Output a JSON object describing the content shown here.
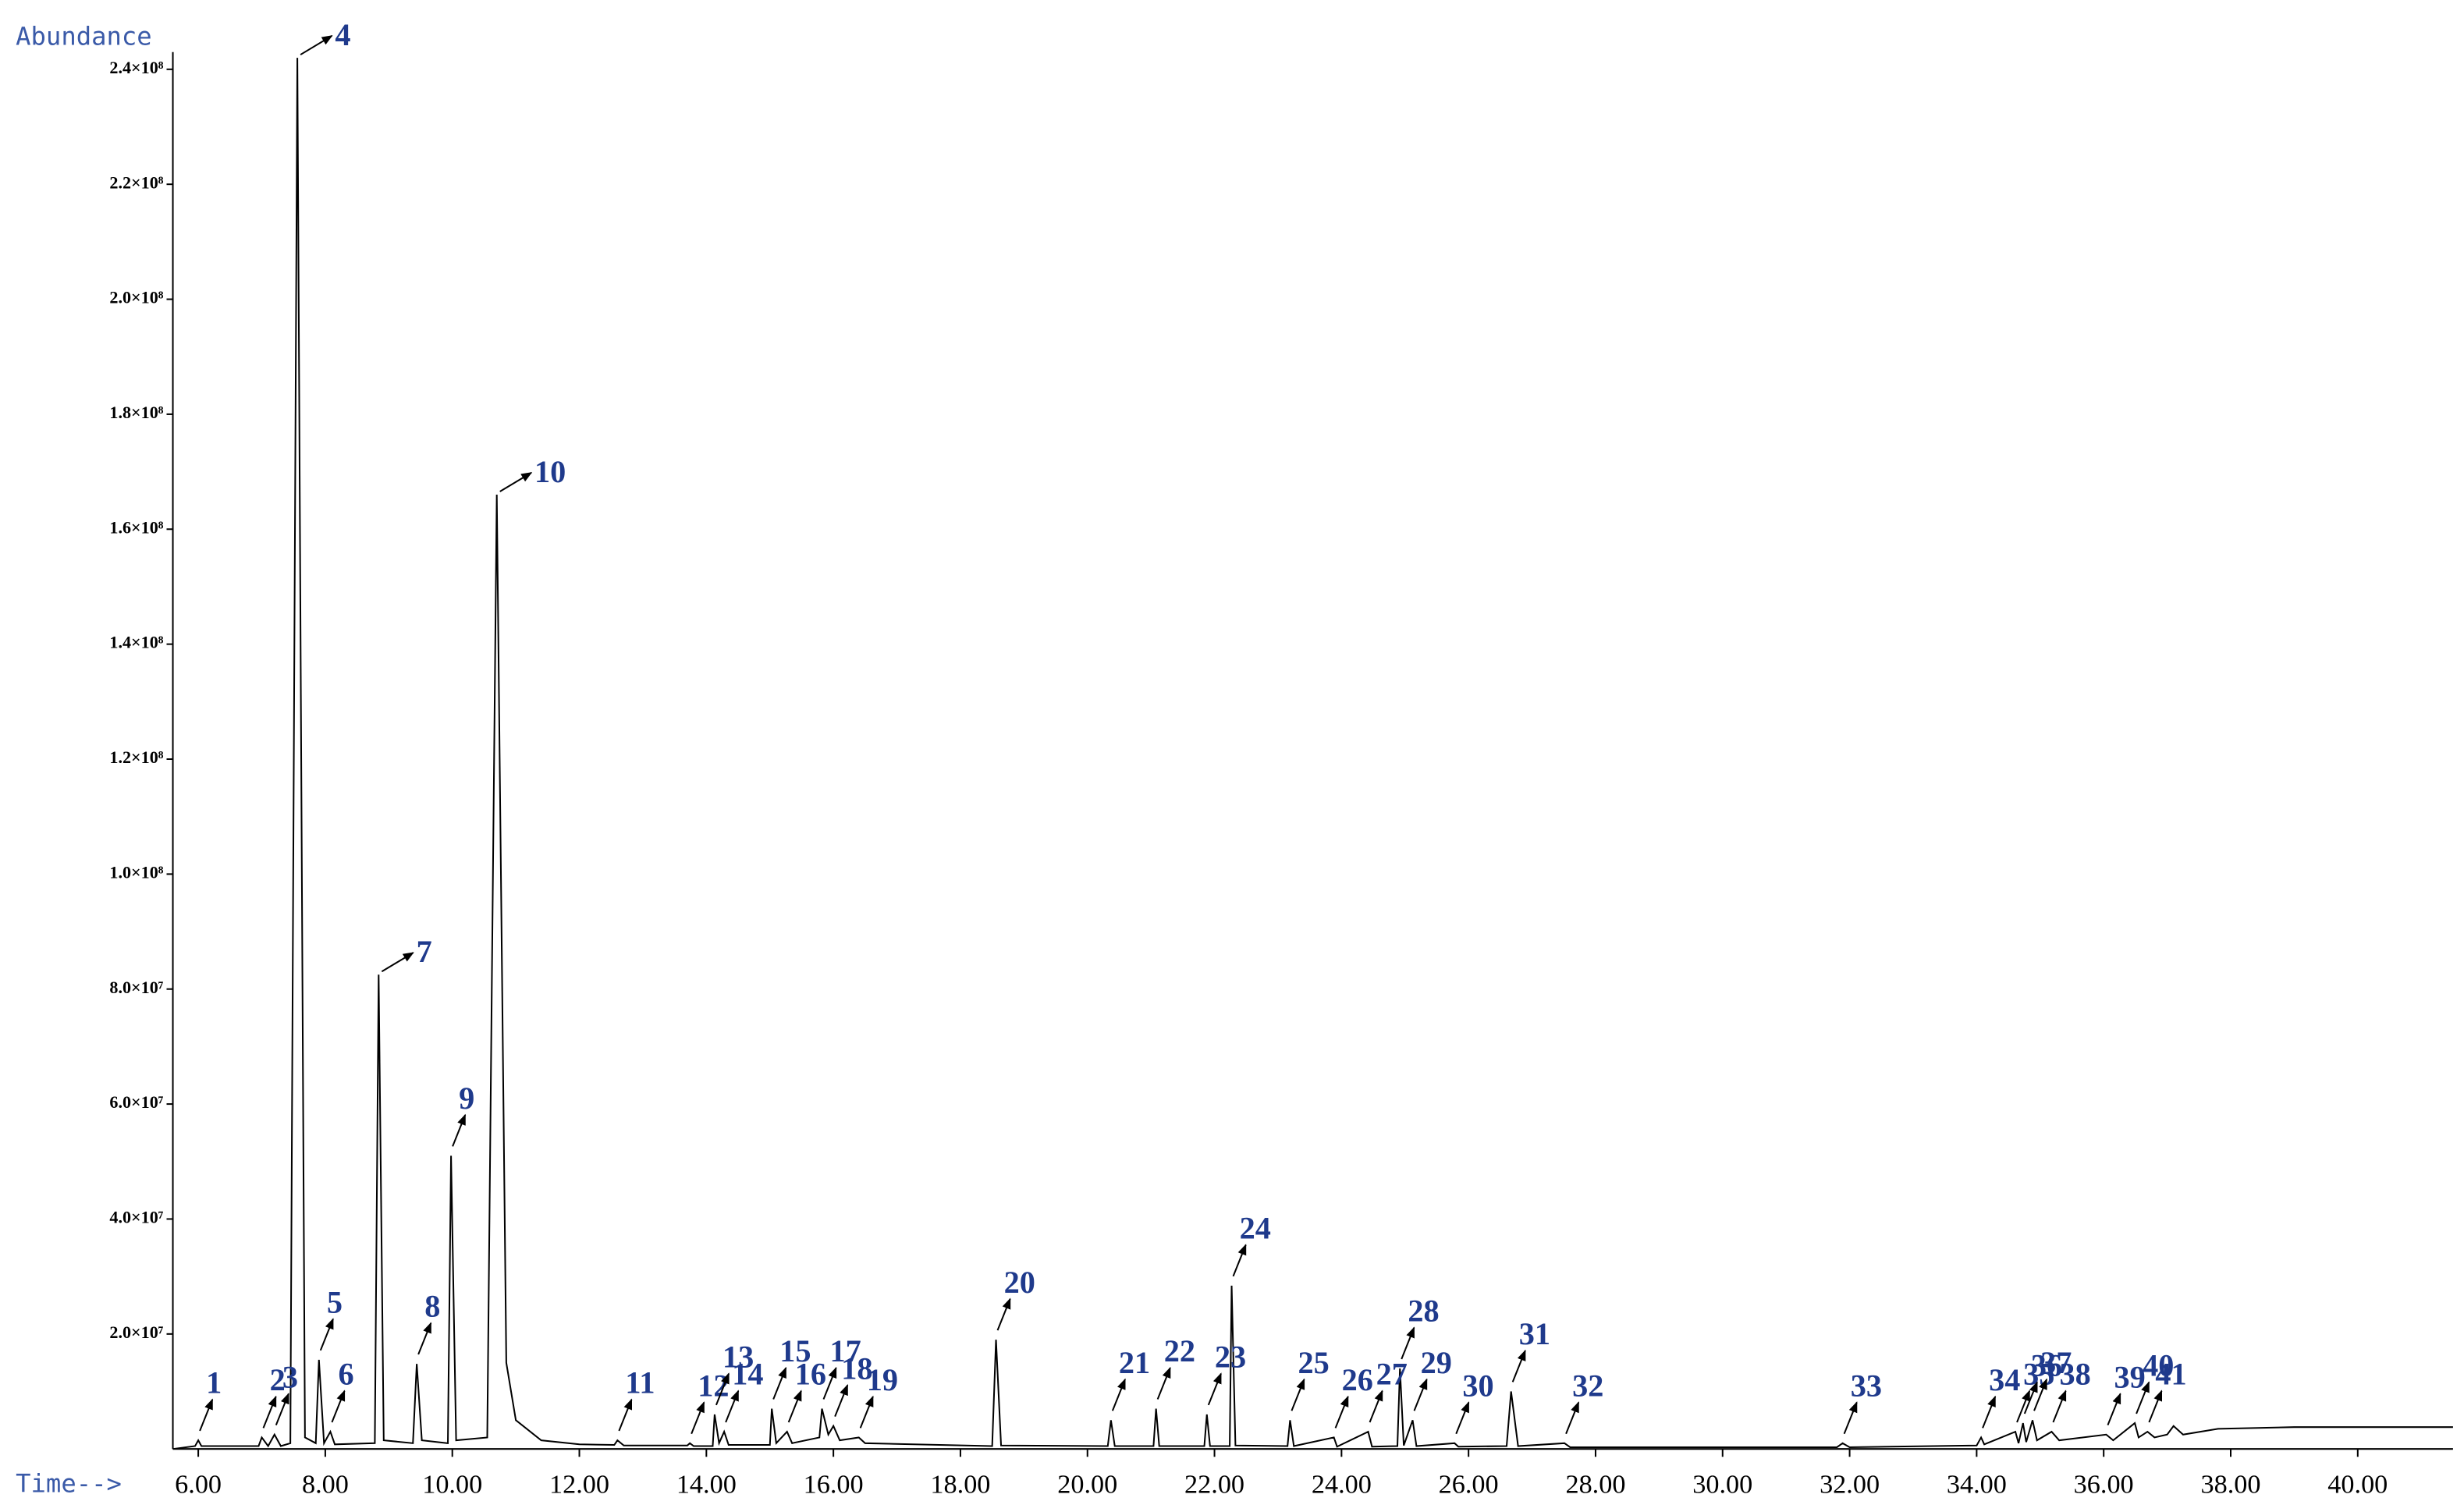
{
  "chart_data": {
    "type": "line",
    "y_label": "Abundance",
    "x_label": "Time-->",
    "color": "#000000",
    "xlim": [
      5.6,
      41.5
    ],
    "ylim": [
      0,
      243000000
    ],
    "xticks": [
      {
        "value": 6,
        "label": "6.00"
      },
      {
        "value": 8,
        "label": "8.00"
      },
      {
        "value": 10,
        "label": "10.00"
      },
      {
        "value": 12,
        "label": "12.00"
      },
      {
        "value": 14,
        "label": "14.00"
      },
      {
        "value": 16,
        "label": "16.00"
      },
      {
        "value": 18,
        "label": "18.00"
      },
      {
        "value": 20,
        "label": "20.00"
      },
      {
        "value": 22,
        "label": "22.00"
      },
      {
        "value": 24,
        "label": "24.00"
      },
      {
        "value": 26,
        "label": "26.00"
      },
      {
        "value": 28,
        "label": "28.00"
      },
      {
        "value": 30,
        "label": "30.00"
      },
      {
        "value": 32,
        "label": "32.00"
      },
      {
        "value": 34,
        "label": "34.00"
      },
      {
        "value": 36,
        "label": "36.00"
      },
      {
        "value": 38,
        "label": "38.00"
      },
      {
        "value": 40,
        "label": "40.00"
      }
    ],
    "yticks": [
      {
        "value": 20000000,
        "label": "2.0×10⁷"
      },
      {
        "value": 40000000,
        "label": "4.0×10⁷"
      },
      {
        "value": 60000000,
        "label": "6.0×10⁷"
      },
      {
        "value": 80000000,
        "label": "8.0×10⁷"
      },
      {
        "value": 100000000,
        "label": "1.0×10⁸"
      },
      {
        "value": 120000000,
        "label": "1.2×10⁸"
      },
      {
        "value": 140000000,
        "label": "1.4×10⁸"
      },
      {
        "value": 160000000,
        "label": "1.6×10⁸"
      },
      {
        "value": 180000000,
        "label": "1.8×10⁸"
      },
      {
        "value": 200000000,
        "label": "2.0×10⁸"
      },
      {
        "value": 220000000,
        "label": "2.2×10⁸"
      },
      {
        "value": 240000000,
        "label": "2.4×10⁸"
      }
    ],
    "x": [
      5.6,
      5.95,
      6.0,
      6.05,
      6.95,
      7.0,
      7.1,
      7.2,
      7.3,
      7.45,
      7.56,
      7.68,
      7.85,
      7.9,
      7.98,
      8.08,
      8.15,
      8.78,
      8.84,
      8.92,
      9.38,
      9.44,
      9.52,
      9.93,
      9.98,
      10.06,
      10.55,
      10.7,
      10.85,
      11.0,
      11.4,
      12.0,
      12.55,
      12.6,
      12.7,
      13.7,
      13.74,
      13.8,
      14.1,
      14.13,
      14.2,
      14.28,
      14.35,
      15.0,
      15.03,
      15.1,
      15.27,
      15.35,
      15.78,
      15.82,
      15.92,
      16.0,
      16.1,
      16.4,
      16.5,
      18.5,
      18.56,
      18.64,
      20.32,
      20.37,
      20.43,
      21.04,
      21.08,
      21.13,
      21.84,
      21.88,
      21.93,
      22.24,
      22.27,
      22.33,
      23.15,
      23.19,
      23.25,
      23.88,
      23.93,
      24.42,
      24.48,
      24.88,
      24.92,
      24.98,
      25.12,
      25.18,
      25.78,
      25.84,
      26.6,
      26.67,
      26.78,
      27.51,
      27.6,
      31.8,
      31.89,
      32.0,
      34.0,
      34.07,
      34.12,
      34.61,
      34.66,
      34.73,
      34.78,
      34.88,
      34.95,
      35.18,
      35.3,
      36.04,
      36.15,
      36.49,
      36.55,
      36.69,
      36.8,
      37.0,
      37.1,
      37.25,
      37.8,
      39.0,
      41.5
    ],
    "values": [
      0,
      500000,
      1500000,
      500000,
      500000,
      2000000,
      500000,
      2500000,
      500000,
      1000000,
      242000000,
      2000000,
      1000000,
      15500000,
      1000000,
      3000000,
      800000,
      1000000,
      82500000,
      1500000,
      1000000,
      14800000,
      1500000,
      1000000,
      51000000,
      1500000,
      2000000,
      166000000,
      15000000,
      5000000,
      1500000,
      800000,
      700000,
      1500000,
      600000,
      600000,
      1000000,
      500000,
      500000,
      6000000,
      1000000,
      3000000,
      700000,
      700000,
      7000000,
      1000000,
      3000000,
      1000000,
      2000000,
      7000000,
      2500000,
      4000000,
      1500000,
      2000000,
      1000000,
      500000,
      19000000,
      600000,
      500000,
      5000000,
      500000,
      500000,
      7000000,
      500000,
      500000,
      6000000,
      500000,
      500000,
      28400000,
      600000,
      500000,
      5000000,
      500000,
      2000000,
      400000,
      3000000,
      400000,
      500000,
      14000000,
      600000,
      5000000,
      500000,
      1000000,
      400000,
      500000,
      10000000,
      500000,
      1000000,
      300000,
      300000,
      1000000,
      300000,
      600000,
      2000000,
      800000,
      3000000,
      1000000,
      4500000,
      1200000,
      5000000,
      1500000,
      3000000,
      1500000,
      2500000,
      1500000,
      4500000,
      2000000,
      3000000,
      2000000,
      2500000,
      4000000,
      2500000,
      3500000,
      3800000,
      3800000
    ],
    "peaks": [
      {
        "label": "1",
        "x": 6.0
      },
      {
        "label": "2",
        "x": 7.0
      },
      {
        "label": "3",
        "x": 7.2
      },
      {
        "label": "4",
        "x": 7.56
      },
      {
        "label": "5",
        "x": 7.9
      },
      {
        "label": "6",
        "x": 8.08
      },
      {
        "label": "7",
        "x": 8.84
      },
      {
        "label": "8",
        "x": 9.44
      },
      {
        "label": "9",
        "x": 9.98
      },
      {
        "label": "10",
        "x": 10.7
      },
      {
        "label": "11",
        "x": 12.6
      },
      {
        "label": "12",
        "x": 13.74
      },
      {
        "label": "13",
        "x": 14.13
      },
      {
        "label": "14",
        "x": 14.28
      },
      {
        "label": "15",
        "x": 15.03
      },
      {
        "label": "16",
        "x": 15.27
      },
      {
        "label": "17",
        "x": 15.82
      },
      {
        "label": "18",
        "x": 16.0
      },
      {
        "label": "19",
        "x": 16.4
      },
      {
        "label": "20",
        "x": 18.56
      },
      {
        "label": "21",
        "x": 20.37
      },
      {
        "label": "22",
        "x": 21.08
      },
      {
        "label": "23",
        "x": 21.88
      },
      {
        "label": "24",
        "x": 22.27
      },
      {
        "label": "25",
        "x": 23.19
      },
      {
        "label": "26",
        "x": 23.88
      },
      {
        "label": "27",
        "x": 24.42
      },
      {
        "label": "28",
        "x": 24.92
      },
      {
        "label": "29",
        "x": 25.12
      },
      {
        "label": "30",
        "x": 25.78
      },
      {
        "label": "31",
        "x": 26.67
      },
      {
        "label": "32",
        "x": 27.51
      },
      {
        "label": "33",
        "x": 31.89
      },
      {
        "label": "34",
        "x": 34.07
      },
      {
        "label": "35",
        "x": 34.61
      },
      {
        "label": "36",
        "x": 34.73
      },
      {
        "label": "37",
        "x": 34.88
      },
      {
        "label": "38",
        "x": 35.18
      },
      {
        "label": "39",
        "x": 36.04
      },
      {
        "label": "40",
        "x": 36.49
      },
      {
        "label": "41",
        "x": 36.69
      }
    ]
  }
}
